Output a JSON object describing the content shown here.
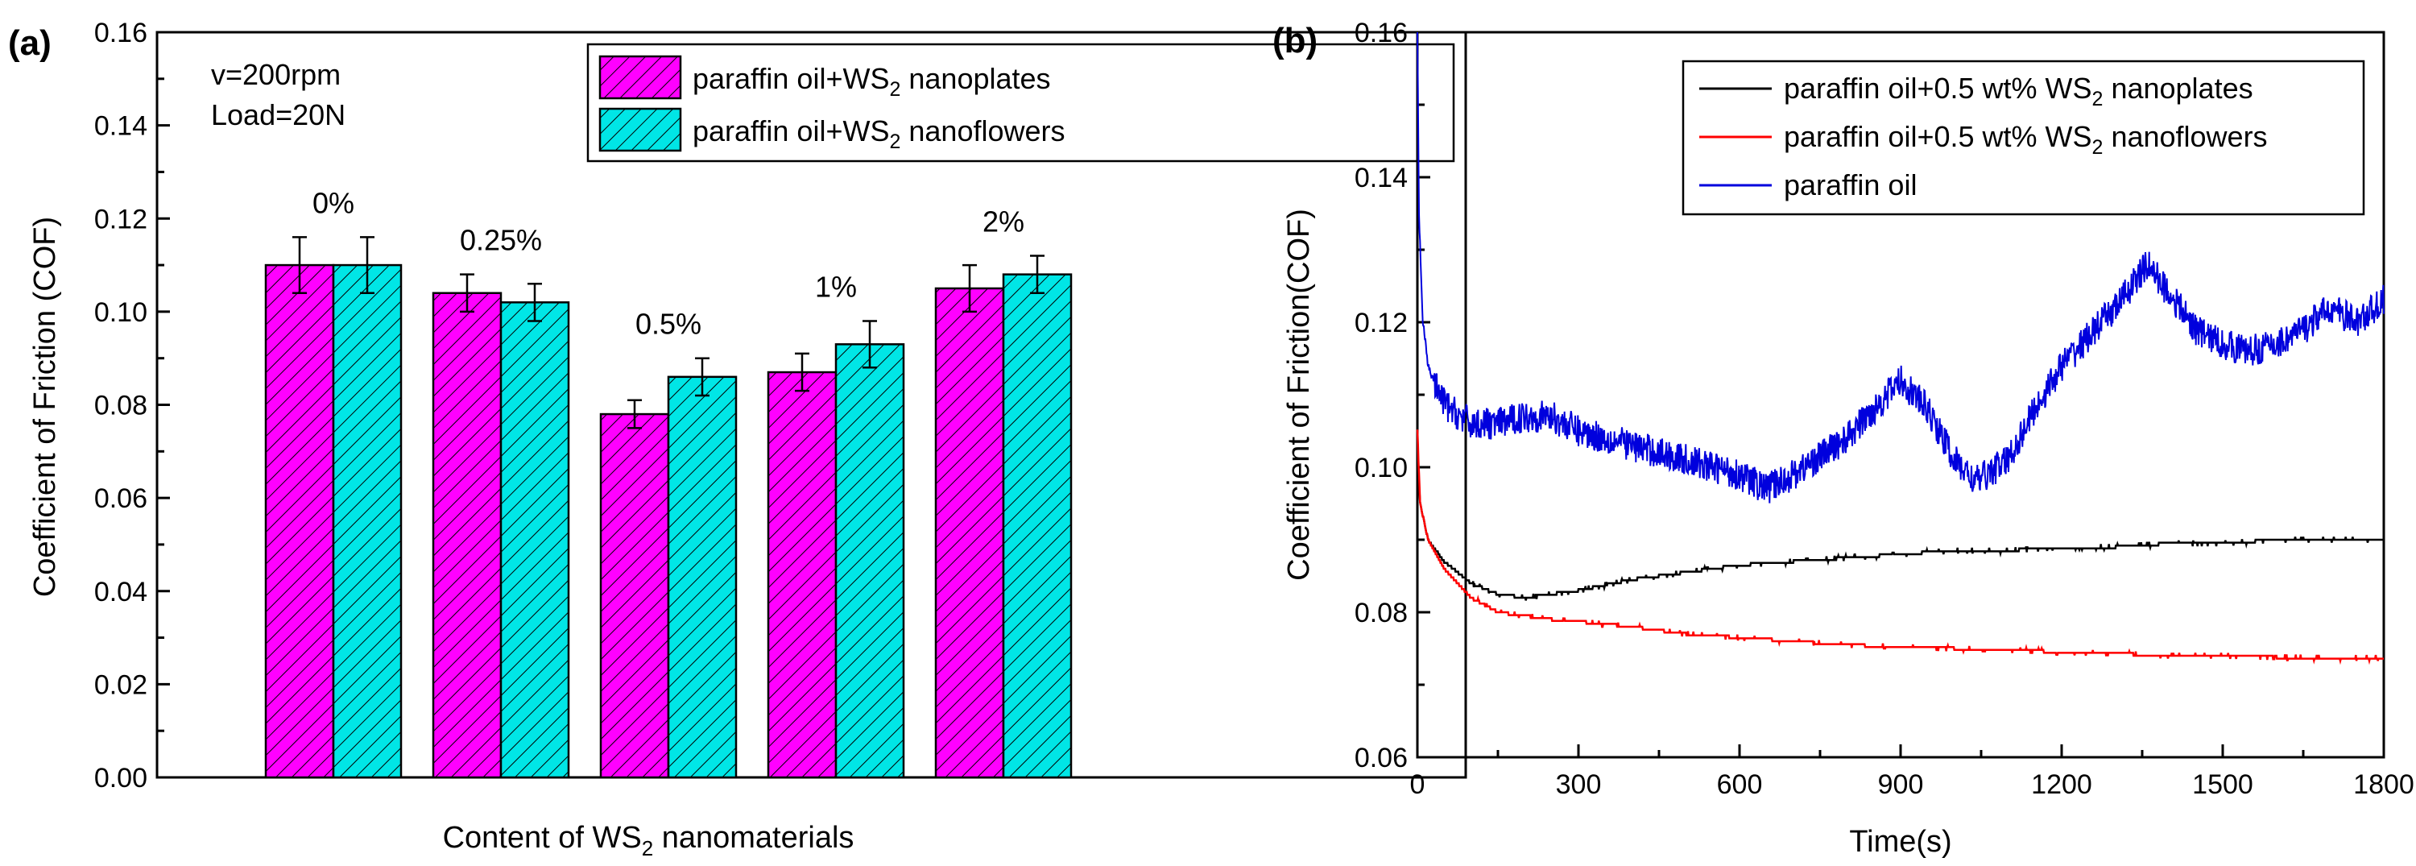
{
  "chart_data": [
    {
      "panel": "(a)",
      "type": "bar",
      "categories": [
        "0%",
        "0.25%",
        "0.5%",
        "1%",
        "2%"
      ],
      "series": [
        {
          "name_main": "paraffin oil+WS",
          "name_sub": "2",
          "name_tail": " nanoplates",
          "color": "#ff00ff",
          "hatch": "diagonal",
          "values": [
            0.11,
            0.104,
            0.078,
            0.087,
            0.105
          ],
          "errors": [
            0.006,
            0.004,
            0.003,
            0.004,
            0.005
          ]
        },
        {
          "name_main": "paraffin oil+WS",
          "name_sub": "2",
          "name_tail": " nanoflowers",
          "color": "#00e6e6",
          "hatch": "diagonal",
          "values": [
            0.11,
            0.102,
            0.086,
            0.093,
            0.108
          ],
          "errors": [
            0.006,
            0.004,
            0.004,
            0.005,
            0.004
          ]
        }
      ],
      "ylabel": "Coefficient of Friction (COF)",
      "xlabel_main": "Content of WS",
      "xlabel_sub": "2",
      "xlabel_tail": " nanomaterials",
      "ylim": [
        0.0,
        0.16
      ],
      "yticks": [
        "0.00",
        "0.02",
        "0.04",
        "0.06",
        "0.08",
        "0.10",
        "0.12",
        "0.14",
        "0.16"
      ],
      "conditions": [
        "v=200rpm",
        "Load=20N"
      ],
      "legend_position": "top-right"
    },
    {
      "panel": "(b)",
      "type": "line",
      "xlabel": "Time(s)",
      "ylabel": "Coefficient of Friction(COF)",
      "xlim": [
        0,
        1800
      ],
      "ylim": [
        0.06,
        0.16
      ],
      "xticks": [
        "0",
        "300",
        "600",
        "900",
        "1200",
        "1500",
        "1800"
      ],
      "yticks": [
        "0.06",
        "0.08",
        "0.10",
        "0.12",
        "0.14",
        "0.16"
      ],
      "legend_position": "top-right",
      "series": [
        {
          "name_main": "paraffin oil+0.5 wt% WS",
          "name_sub": "2",
          "name_tail": " nanoplates",
          "color": "#000000",
          "style": "step",
          "noise": 0.0004,
          "points": [
            [
              0,
              0.101
            ],
            [
              5,
              0.095
            ],
            [
              20,
              0.09
            ],
            [
              50,
              0.087
            ],
            [
              100,
              0.084
            ],
            [
              150,
              0.0825
            ],
            [
              200,
              0.082
            ],
            [
              250,
              0.0825
            ],
            [
              300,
              0.083
            ],
            [
              400,
              0.0845
            ],
            [
              500,
              0.0855
            ],
            [
              600,
              0.0865
            ],
            [
              700,
              0.087
            ],
            [
              800,
              0.0875
            ],
            [
              900,
              0.088
            ],
            [
              1000,
              0.0885
            ],
            [
              1100,
              0.0885
            ],
            [
              1200,
              0.089
            ],
            [
              1300,
              0.089
            ],
            [
              1400,
              0.0895
            ],
            [
              1500,
              0.0895
            ],
            [
              1600,
              0.09
            ],
            [
              1700,
              0.09
            ],
            [
              1800,
              0.09
            ]
          ]
        },
        {
          "name_main": "paraffin oil+0.5 wt% WS",
          "name_sub": "2",
          "name_tail": " nanoflowers",
          "color": "#ff0000",
          "style": "step",
          "noise": 0.0004,
          "points": [
            [
              0,
              0.105
            ],
            [
              5,
              0.095
            ],
            [
              20,
              0.09
            ],
            [
              50,
              0.086
            ],
            [
              100,
              0.082
            ],
            [
              150,
              0.08
            ],
            [
              200,
              0.0795
            ],
            [
              250,
              0.079
            ],
            [
              300,
              0.0787
            ],
            [
              400,
              0.078
            ],
            [
              500,
              0.077
            ],
            [
              600,
              0.0765
            ],
            [
              700,
              0.076
            ],
            [
              800,
              0.0755
            ],
            [
              900,
              0.0752
            ],
            [
              1000,
              0.075
            ],
            [
              1100,
              0.0748
            ],
            [
              1200,
              0.0745
            ],
            [
              1300,
              0.0743
            ],
            [
              1400,
              0.074
            ],
            [
              1500,
              0.074
            ],
            [
              1600,
              0.0738
            ],
            [
              1700,
              0.0737
            ],
            [
              1800,
              0.0737
            ]
          ]
        },
        {
          "name_main": "paraffin oil",
          "name_sub": "",
          "name_tail": "",
          "color": "#0000dd",
          "style": "noisy",
          "noise": 0.0022,
          "points": [
            [
              0,
              0.16
            ],
            [
              3,
              0.135
            ],
            [
              10,
              0.12
            ],
            [
              20,
              0.114
            ],
            [
              40,
              0.11
            ],
            [
              60,
              0.108
            ],
            [
              100,
              0.106
            ],
            [
              150,
              0.106
            ],
            [
              200,
              0.107
            ],
            [
              250,
              0.107
            ],
            [
              300,
              0.105
            ],
            [
              400,
              0.103
            ],
            [
              500,
              0.101
            ],
            [
              600,
              0.099
            ],
            [
              650,
              0.097
            ],
            [
              700,
              0.099
            ],
            [
              800,
              0.104
            ],
            [
              850,
              0.108
            ],
            [
              900,
              0.112
            ],
            [
              950,
              0.108
            ],
            [
              1000,
              0.101
            ],
            [
              1040,
              0.098
            ],
            [
              1100,
              0.101
            ],
            [
              1150,
              0.108
            ],
            [
              1200,
              0.114
            ],
            [
              1250,
              0.118
            ],
            [
              1300,
              0.122
            ],
            [
              1360,
              0.128
            ],
            [
              1400,
              0.124
            ],
            [
              1450,
              0.119
            ],
            [
              1500,
              0.117
            ],
            [
              1550,
              0.116
            ],
            [
              1600,
              0.117
            ],
            [
              1650,
              0.119
            ],
            [
              1700,
              0.122
            ],
            [
              1750,
              0.12
            ],
            [
              1800,
              0.123
            ]
          ]
        }
      ]
    }
  ]
}
